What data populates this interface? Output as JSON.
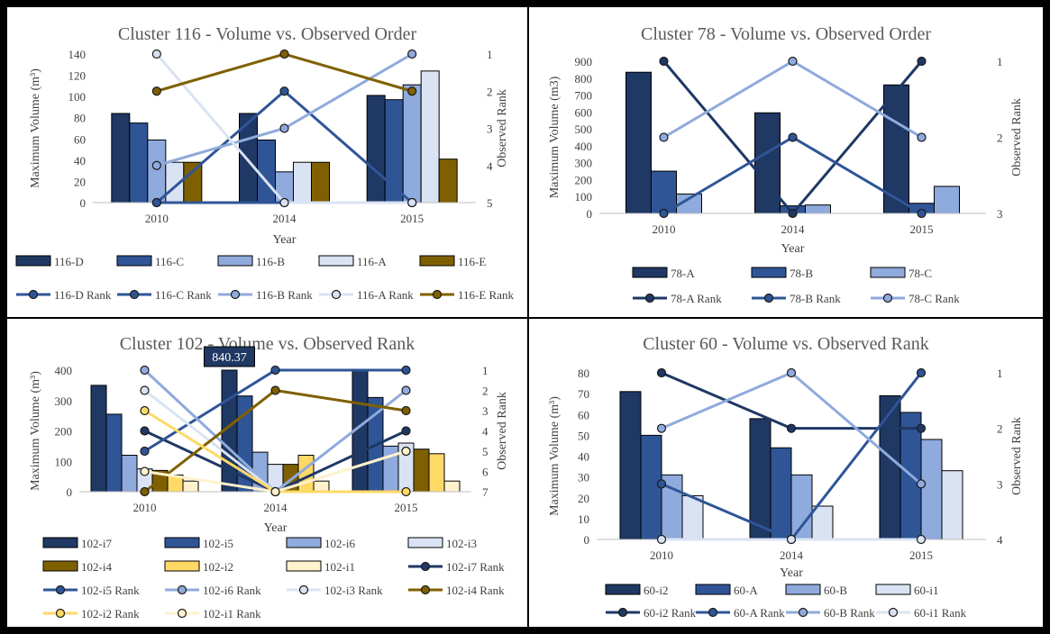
{
  "colors": {
    "dark_navy": "#1f3864",
    "mid_blue": "#2f5597",
    "light_blue": "#8faadc",
    "pale_blue": "#dae3f3",
    "olive": "#7f6000",
    "gold": "#ffd966",
    "cream": "#fff2cc"
  },
  "chart_data": [
    {
      "id": "116",
      "type": "bar+line",
      "title": "Cluster 116 - Volume vs. Observed Order",
      "xlabel": "Year",
      "ylabel": "Maximum Volume (m³)",
      "y2label": "Observed Rank",
      "categories": [
        "2010",
        "2014",
        "2015"
      ],
      "ylim": [
        0,
        140
      ],
      "yticks": [
        0,
        20,
        40,
        60,
        80,
        100,
        120,
        140
      ],
      "y2lim": [
        1,
        5
      ],
      "y2ticks": [
        1,
        2,
        3,
        4,
        5
      ],
      "bar_series": [
        {
          "name": "116-D",
          "color": "#1f3864",
          "values": [
            84,
            84,
            101
          ]
        },
        {
          "name": "116-C",
          "color": "#2f5597",
          "values": [
            75,
            59,
            97
          ]
        },
        {
          "name": "116-B",
          "color": "#8faadc",
          "values": [
            59,
            29,
            111
          ]
        },
        {
          "name": "116-A",
          "color": "#dae3f3",
          "values": [
            38,
            38,
            124
          ]
        },
        {
          "name": "116-E",
          "color": "#7f6000",
          "values": [
            38,
            38,
            41
          ]
        }
      ],
      "rank_series": [
        {
          "name": "116-D Rank",
          "color": "#2f5597",
          "values": [
            5,
            5,
            5
          ]
        },
        {
          "name": "116-C Rank",
          "color": "#2f5597",
          "values": [
            5,
            2,
            5
          ]
        },
        {
          "name": "116-B Rank",
          "color": "#8faadc",
          "values": [
            4,
            3,
            1
          ]
        },
        {
          "name": "116-A Rank",
          "color": "#dae3f3",
          "values": [
            1,
            5,
            5
          ]
        },
        {
          "name": "116-E Rank",
          "color": "#7f6000",
          "values": [
            2,
            1,
            2
          ]
        }
      ],
      "legend_rows": [
        [
          [
            "bar",
            0
          ],
          [
            "bar",
            1
          ],
          [
            "bar",
            2
          ],
          [
            "bar",
            3
          ],
          [
            "bar",
            4
          ]
        ],
        [
          [
            "rank",
            0
          ],
          [
            "rank",
            1
          ],
          [
            "rank",
            2
          ],
          [
            "rank",
            3
          ],
          [
            "rank",
            4
          ]
        ]
      ],
      "annotation": null
    },
    {
      "id": "78",
      "type": "bar+line",
      "title": "Cluster 78 - Volume vs. Observed Order",
      "xlabel": "Year",
      "ylabel": "Maximum Volume (m3)",
      "y2label": "Observed Rank",
      "categories": [
        "2010",
        "2014",
        "2015"
      ],
      "ylim": [
        0,
        900
      ],
      "yticks": [
        0,
        100,
        200,
        300,
        400,
        500,
        600,
        700,
        800,
        900
      ],
      "y2lim": [
        1,
        3
      ],
      "y2ticks": [
        1,
        2,
        3
      ],
      "bar_series": [
        {
          "name": "78-A",
          "color": "#1f3864",
          "values": [
            835,
            595,
            760
          ]
        },
        {
          "name": "78-B",
          "color": "#2f5597",
          "values": [
            250,
            45,
            60
          ]
        },
        {
          "name": "78-C",
          "color": "#8faadc",
          "values": [
            115,
            50,
            160
          ]
        }
      ],
      "rank_series": [
        {
          "name": "78-A Rank",
          "color": "#1f3864",
          "values": [
            1,
            3,
            1
          ]
        },
        {
          "name": "78-B Rank",
          "color": "#2f5597",
          "values": [
            3,
            2,
            3
          ]
        },
        {
          "name": "78-C Rank",
          "color": "#8faadc",
          "values": [
            2,
            1,
            2
          ]
        }
      ],
      "legend_rows": [
        [
          [
            "bar",
            0
          ],
          [
            "bar",
            1
          ],
          [
            "bar",
            2
          ]
        ],
        [
          [
            "rank",
            0
          ],
          [
            "rank",
            1
          ],
          [
            "rank",
            2
          ]
        ]
      ],
      "annotation": null
    },
    {
      "id": "102",
      "type": "bar+line",
      "title": "Cluster 102 - Volume vs. Observed Rank",
      "xlabel": "Year",
      "ylabel": "Maximum Volume (m³)",
      "y2label": "Observed Rank",
      "categories": [
        "2010",
        "2014",
        "2015"
      ],
      "ylim": [
        0,
        400
      ],
      "yticks": [
        0,
        100,
        200,
        300,
        400
      ],
      "y2lim": [
        1,
        7
      ],
      "y2ticks": [
        1,
        2,
        3,
        4,
        5,
        6,
        7
      ],
      "bar_series": [
        {
          "name": "102-i7",
          "color": "#1f3864",
          "values": [
            350,
            840.37,
            400
          ]
        },
        {
          "name": "102-i5",
          "color": "#2f5597",
          "values": [
            255,
            315,
            310
          ]
        },
        {
          "name": "102-i6",
          "color": "#8faadc",
          "values": [
            120,
            130,
            150
          ]
        },
        {
          "name": "102-i3",
          "color": "#dae3f3",
          "values": [
            75,
            90,
            160
          ]
        },
        {
          "name": "102-i4",
          "color": "#7f6000",
          "values": [
            70,
            90,
            140
          ]
        },
        {
          "name": "102-i2",
          "color": "#ffd966",
          "values": [
            55,
            120,
            125
          ]
        },
        {
          "name": "102-i1",
          "color": "#fff2cc",
          "values": [
            35,
            35,
            35
          ]
        }
      ],
      "rank_series": [
        {
          "name": "102-i7 Rank",
          "color": "#1f3864",
          "values": [
            4,
            7,
            4
          ]
        },
        {
          "name": "102-i5 Rank",
          "color": "#2f5597",
          "values": [
            5,
            1,
            1
          ]
        },
        {
          "name": "102-i6 Rank",
          "color": "#8faadc",
          "values": [
            1,
            7,
            2
          ]
        },
        {
          "name": "102-i3 Rank",
          "color": "#dae3f3",
          "values": [
            2,
            7,
            5
          ]
        },
        {
          "name": "102-i4 Rank",
          "color": "#7f6000",
          "values": [
            7,
            2,
            3
          ]
        },
        {
          "name": "102-i2 Rank",
          "color": "#ffd966",
          "values": [
            3,
            7,
            7
          ]
        },
        {
          "name": "102-i1 Rank",
          "color": "#fff2cc",
          "values": [
            6,
            7,
            5
          ]
        }
      ],
      "legend_rows": [
        [
          [
            "bar",
            0
          ],
          [
            "bar",
            1
          ],
          [
            "bar",
            2
          ],
          [
            "bar",
            3
          ]
        ],
        [
          [
            "bar",
            4
          ],
          [
            "bar",
            5
          ],
          [
            "bar",
            6
          ],
          [
            "rank",
            0
          ]
        ],
        [
          [
            "rank",
            1
          ],
          [
            "rank",
            2
          ],
          [
            "rank",
            3
          ],
          [
            "rank",
            4
          ]
        ],
        [
          [
            "rank",
            5
          ],
          [
            "rank",
            6
          ]
        ]
      ],
      "annotation": {
        "text": "840.37",
        "series": 0,
        "category": 1
      }
    },
    {
      "id": "60",
      "type": "bar+line",
      "title": "Cluster 60 - Volume vs. Observed Rank",
      "xlabel": "Year",
      "ylabel": "Maximum Volume (m³)",
      "y2label": "Observed Rank",
      "categories": [
        "2010",
        "2014",
        "2015"
      ],
      "ylim": [
        0,
        80
      ],
      "yticks": [
        0,
        10,
        20,
        30,
        40,
        50,
        60,
        70,
        80
      ],
      "y2lim": [
        1,
        4
      ],
      "y2ticks": [
        1,
        2,
        3,
        4
      ],
      "bar_series": [
        {
          "name": "60-i2",
          "color": "#1f3864",
          "values": [
            71,
            58,
            69
          ]
        },
        {
          "name": "60-A",
          "color": "#2f5597",
          "values": [
            50,
            44,
            61
          ]
        },
        {
          "name": "60-B",
          "color": "#8faadc",
          "values": [
            31,
            31,
            48
          ]
        },
        {
          "name": "60-i1",
          "color": "#dae3f3",
          "values": [
            21,
            16,
            33
          ]
        }
      ],
      "rank_series": [
        {
          "name": "60-i2 Rank",
          "color": "#1f3864",
          "values": [
            1,
            2,
            2
          ]
        },
        {
          "name": "60-A Rank",
          "color": "#2f5597",
          "values": [
            3,
            4,
            1
          ]
        },
        {
          "name": "60-B Rank",
          "color": "#8faadc",
          "values": [
            2,
            1,
            3
          ]
        },
        {
          "name": "60-i1 Rank",
          "color": "#dae3f3",
          "values": [
            4,
            4,
            4
          ]
        }
      ],
      "legend_rows": [
        [
          [
            "bar",
            0
          ],
          [
            "bar",
            1
          ],
          [
            "bar",
            2
          ],
          [
            "bar",
            3
          ]
        ],
        [
          [
            "rank",
            0
          ],
          [
            "rank",
            1
          ],
          [
            "rank",
            2
          ],
          [
            "rank",
            3
          ]
        ]
      ],
      "annotation": null
    }
  ]
}
